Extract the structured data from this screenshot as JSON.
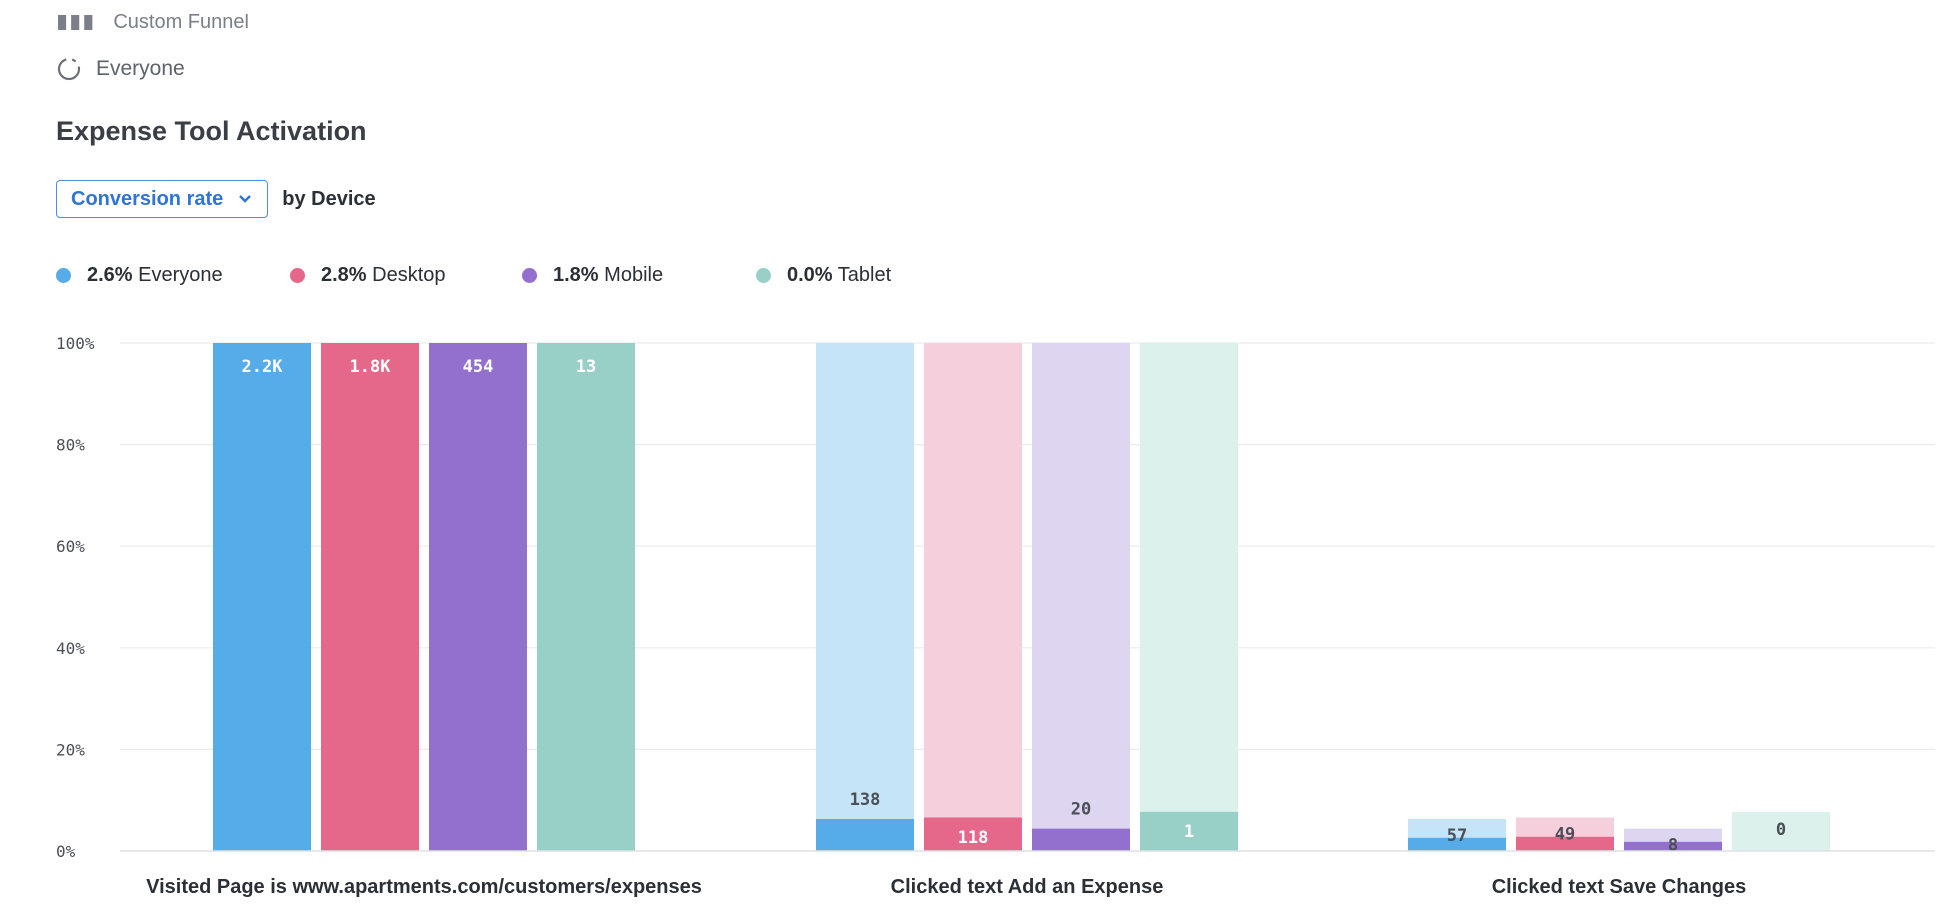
{
  "top_cut_item": {
    "label": "Custom Funnel"
  },
  "segment": {
    "label": "Everyone",
    "icon": "loading-ring-icon"
  },
  "report": {
    "title": "Expense Tool Activation",
    "metric_dropdown": "Conversion rate",
    "breakdown_label": "by Device"
  },
  "legend": [
    {
      "value": "2.6%",
      "name": "Everyone",
      "color": "#56ace8"
    },
    {
      "value": "2.8%",
      "name": "Desktop",
      "color": "#e5688b"
    },
    {
      "value": "1.8%",
      "name": "Mobile",
      "color": "#9470ce"
    },
    {
      "value": "0.0%",
      "name": "Tablet",
      "color": "#98d0c8"
    }
  ],
  "chart_data": {
    "type": "bar",
    "y_ticks": [
      "0%",
      "20%",
      "40%",
      "60%",
      "80%",
      "100%"
    ],
    "ylim": [
      0,
      100
    ],
    "categories": [
      "Visited Page is www.apartments.com/customers/expenses",
      "Clicked text Add an Expense",
      "Clicked text Save Changes"
    ],
    "series": [
      {
        "name": "Everyone",
        "color": "#56ace8",
        "light": "#c5e4f7",
        "values": [
          100,
          6.3,
          2.6
        ],
        "labels": [
          "2.2K",
          "138",
          "57"
        ]
      },
      {
        "name": "Desktop",
        "color": "#e5688b",
        "light": "#f5cfdc",
        "values": [
          100,
          6.6,
          2.8
        ],
        "labels": [
          "1.8K",
          "118",
          "49"
        ]
      },
      {
        "name": "Mobile",
        "color": "#9470ce",
        "light": "#ded5f0",
        "values": [
          100,
          4.4,
          1.8
        ],
        "labels": [
          "454",
          "20",
          "8"
        ]
      },
      {
        "name": "Tablet",
        "color": "#98d0c8",
        "light": "#dcf0ec",
        "values": [
          100,
          7.7,
          0.0
        ],
        "labels": [
          "13",
          "1",
          "0"
        ]
      }
    ],
    "grid": true
  }
}
